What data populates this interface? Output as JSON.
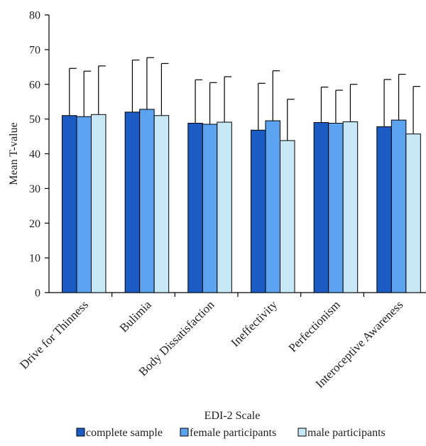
{
  "chart_data": {
    "type": "bar",
    "ylabel": "Mean  T-value",
    "xlabel": "EDI-2 Scale",
    "ylim": [
      0,
      80
    ],
    "yticks": [
      0,
      10,
      20,
      30,
      40,
      50,
      60,
      70,
      80
    ],
    "grid": false,
    "legend_position": "bottom",
    "categories": [
      "Drive for Thinness",
      "Bulimia",
      "Body Dissatisfaction",
      "Ineffectivity",
      "Perfectionism",
      "Interoceptive Awareness"
    ],
    "series": [
      {
        "name": "complete sample",
        "color": "#1a5cc4",
        "values": [
          51,
          52,
          48.8,
          46.8,
          49,
          47.8
        ],
        "error": [
          13.6,
          15,
          12.5,
          13.5,
          10.2,
          13.6
        ]
      },
      {
        "name": "female participants",
        "color": "#5ba3ef",
        "values": [
          50.7,
          52.8,
          48.5,
          49.5,
          48.8,
          49.7
        ],
        "error": [
          13.1,
          14.9,
          12,
          14.4,
          9.5,
          13.2
        ]
      },
      {
        "name": "male participants",
        "color": "#c6e8f7",
        "values": [
          51.3,
          51,
          49.1,
          43.8,
          49.2,
          45.7
        ],
        "error": [
          14,
          15,
          13.1,
          11.9,
          10.8,
          13.7
        ]
      }
    ]
  }
}
